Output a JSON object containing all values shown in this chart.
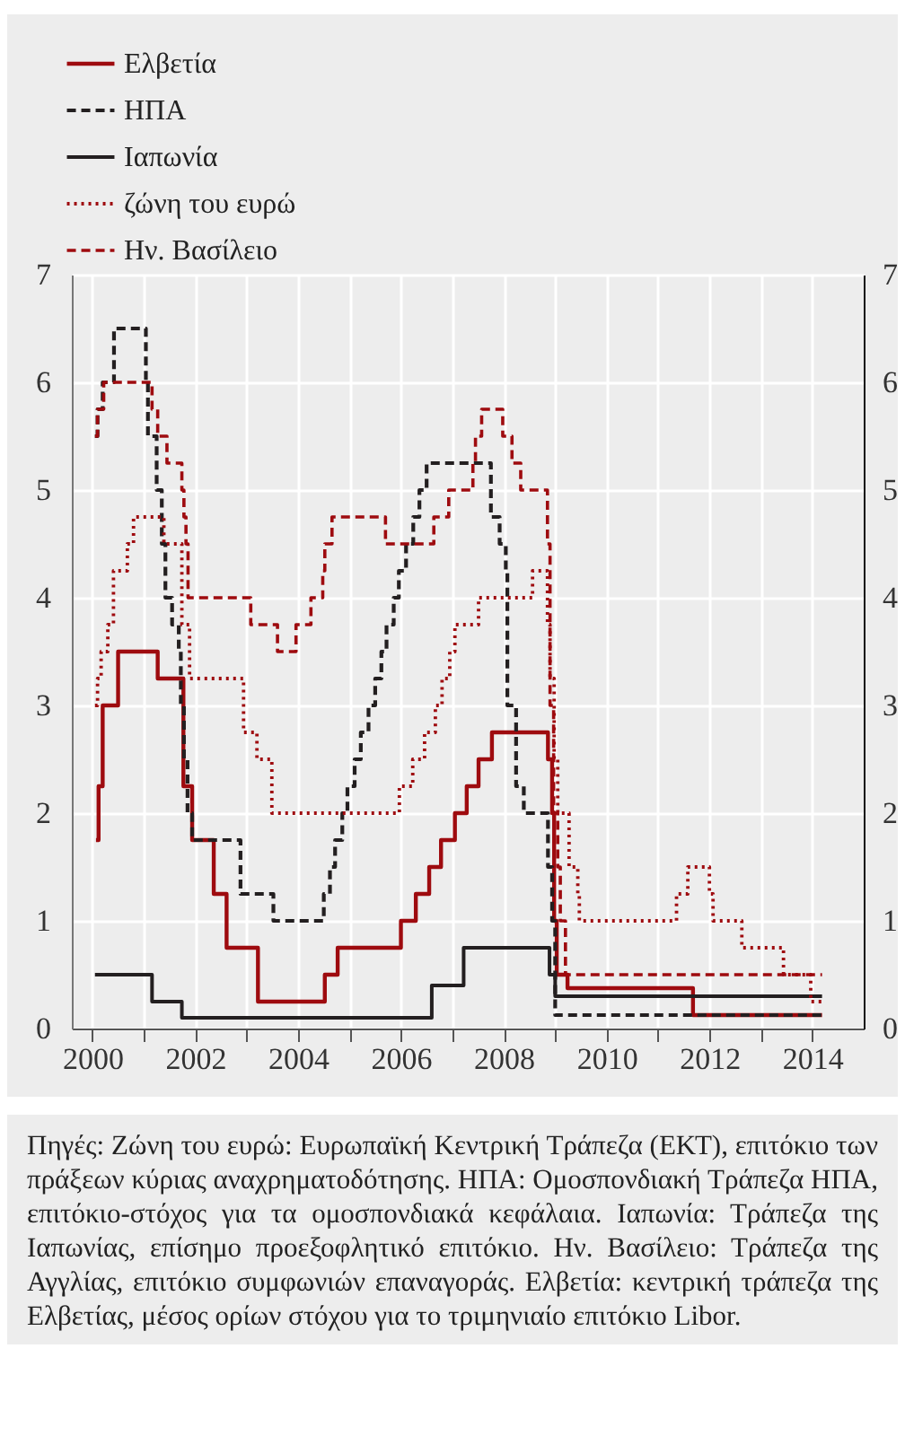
{
  "chart_data": {
    "type": "step",
    "xlim": [
      1999.6,
      2015.0
    ],
    "xticks": [
      2000,
      {
        "value": 2001,
        "label": null
      },
      2002,
      {
        "value": 2003,
        "label": null
      },
      2004,
      {
        "value": 2005,
        "label": null
      },
      2006,
      {
        "value": 2007,
        "label": null
      },
      2008,
      {
        "value": 2009,
        "label": null
      },
      2010,
      {
        "value": 2011,
        "label": null
      },
      2012,
      {
        "value": 2013,
        "label": null
      },
      2014
    ],
    "ylim": [
      0,
      7
    ],
    "yticks": [
      0,
      1,
      2,
      3,
      4,
      5,
      6,
      7
    ],
    "y2lim": [
      0,
      7
    ],
    "y2ticks": [
      0,
      1,
      2,
      3,
      4,
      5,
      6,
      7
    ],
    "grid": true,
    "legend": "top left",
    "series": [
      {
        "name": "Ελβετία",
        "color": "#9e0b0f",
        "line_style": "solid",
        "x": [
          2000.07,
          2000.12,
          2000.2,
          2000.5,
          2001.27,
          2001.77,
          2001.94,
          2002.36,
          2002.61,
          2003.22,
          2004.52,
          2004.77,
          2006.0,
          2006.29,
          2006.55,
          2006.78,
          2007.05,
          2007.28,
          2007.51,
          2007.77,
          2008.86,
          2008.94,
          2008.98,
          2009.03,
          2009.24,
          2011.68,
          2014.19
        ],
        "values": [
          1.75,
          2.25,
          3.0,
          3.5,
          3.25,
          2.25,
          1.75,
          1.25,
          0.75,
          0.25,
          0.5,
          0.75,
          1.0,
          1.25,
          1.5,
          1.75,
          2.0,
          2.25,
          2.5,
          2.75,
          2.5,
          2.0,
          1.0,
          0.5,
          0.375,
          0.125,
          0.125
        ]
      },
      {
        "name": "ΗΠΑ",
        "color": "#231f20",
        "line_style": "dashed",
        "x": [
          2000.05,
          2000.1,
          2000.2,
          2000.42,
          2001.04,
          2001.08,
          2001.25,
          2001.35,
          2001.42,
          2001.55,
          2001.68,
          2001.72,
          2001.78,
          2001.85,
          2001.94,
          2002.88,
          2003.52,
          2004.5,
          2004.62,
          2004.72,
          2004.86,
          2004.96,
          2005.1,
          2005.22,
          2005.37,
          2005.5,
          2005.62,
          2005.72,
          2005.86,
          2005.96,
          2006.1,
          2006.24,
          2006.36,
          2006.5,
          2007.75,
          2007.92,
          2008.04,
          2008.07,
          2008.24,
          2008.39,
          2008.86,
          2008.94,
          2009.0,
          2014.19
        ],
        "values": [
          5.5,
          5.75,
          6.0,
          6.5,
          6.0,
          5.5,
          5.0,
          4.5,
          4.0,
          3.75,
          3.5,
          3.0,
          2.5,
          2.0,
          1.75,
          1.25,
          1.0,
          1.25,
          1.5,
          1.75,
          2.0,
          2.25,
          2.5,
          2.75,
          3.0,
          3.25,
          3.5,
          3.75,
          4.0,
          4.25,
          4.5,
          4.75,
          5.0,
          5.25,
          4.75,
          4.5,
          4.25,
          3.0,
          2.25,
          2.0,
          1.5,
          1.0,
          0.125,
          0.125
        ]
      },
      {
        "name": "Ιαπωνία",
        "color": "#231f20",
        "line_style": "solid",
        "x": [
          2000.05,
          2001.16,
          2001.74,
          2006.6,
          2007.22,
          2008.89,
          2009.0,
          2014.19
        ],
        "values": [
          0.5,
          0.25,
          0.1,
          0.4,
          0.75,
          0.5,
          0.3,
          0.3
        ]
      },
      {
        "name": "ζώνη του ευρώ",
        "color": "#9e0b0f",
        "line_style": "dotted",
        "x": [
          2000.05,
          2000.1,
          2000.17,
          2000.3,
          2000.41,
          2000.68,
          2000.8,
          2001.39,
          2001.74,
          2001.89,
          2002.94,
          2003.2,
          2003.49,
          2005.97,
          2006.23,
          2006.46,
          2006.67,
          2006.8,
          2006.95,
          2007.05,
          2007.51,
          2008.56,
          2008.85,
          2008.9,
          2008.98,
          2009.05,
          2009.27,
          2009.44,
          2009.47,
          2011.36,
          2011.58,
          2012.0,
          2012.07,
          2012.63,
          2013.44,
          2013.97,
          2014.19
        ],
        "values": [
          3.0,
          3.25,
          3.5,
          3.75,
          4.25,
          4.5,
          4.75,
          4.5,
          3.75,
          3.25,
          2.75,
          2.5,
          2.0,
          2.25,
          2.5,
          2.75,
          3.0,
          3.25,
          3.5,
          3.75,
          4.0,
          4.25,
          3.75,
          3.25,
          2.5,
          2.0,
          1.5,
          1.25,
          1.0,
          1.25,
          1.5,
          1.25,
          1.0,
          0.75,
          0.5,
          0.25,
          0.25
        ]
      },
      {
        "name": "Ην. Βασίλειο",
        "color": "#9e0b0f",
        "line_style": "dashed",
        "x": [
          2000.05,
          2000.1,
          2000.22,
          2001.16,
          2001.27,
          2001.45,
          2001.74,
          2001.78,
          2001.82,
          2001.86,
          2003.08,
          2003.6,
          2003.96,
          2004.25,
          2004.48,
          2004.52,
          2004.66,
          2005.7,
          2006.64,
          2006.93,
          2007.4,
          2007.45,
          2007.57,
          2007.98,
          2008.16,
          2008.33,
          2008.85,
          2008.9,
          2008.97,
          2009.05,
          2009.1,
          2009.2,
          2014.19
        ],
        "values": [
          5.5,
          5.75,
          6.0,
          5.75,
          5.5,
          5.25,
          5.0,
          4.75,
          4.5,
          4.0,
          3.75,
          3.5,
          3.75,
          4.0,
          4.25,
          4.5,
          4.75,
          4.5,
          4.75,
          5.0,
          5.25,
          5.5,
          5.75,
          5.5,
          5.25,
          5.0,
          4.5,
          3.0,
          2.0,
          1.5,
          1.0,
          0.5,
          0.5
        ]
      }
    ],
    "annotations": [
      "Πηγές: Ζώνη του ευρώ: Ευρωπαϊκή Κεντρική Τράπεζα (ΕΚΤ), επιτόκιο των πράξεων κύριας αναχρηματοδότησης. ΗΠΑ: Ομοσπονδιακή Τράπεζα ΗΠΑ, επιτόκιο-στόχος για τα ομοσπονδιακά κεφάλαια. Ιαπωνία: Τράπεζα της Ιαπωνίας, επίσημο προεξοφλητικό επιτόκιο. Ην. Βασίλειο: Τράπεζα της Αγγλίας, επιτόκιο συμφωνιών επαναγοράς. Ελβετία: κεντρική τράπεζα της Ελβετίας, μέσος ορίων στόχου για το τριμηνιαίο επιτόκιο Libor."
    ]
  }
}
